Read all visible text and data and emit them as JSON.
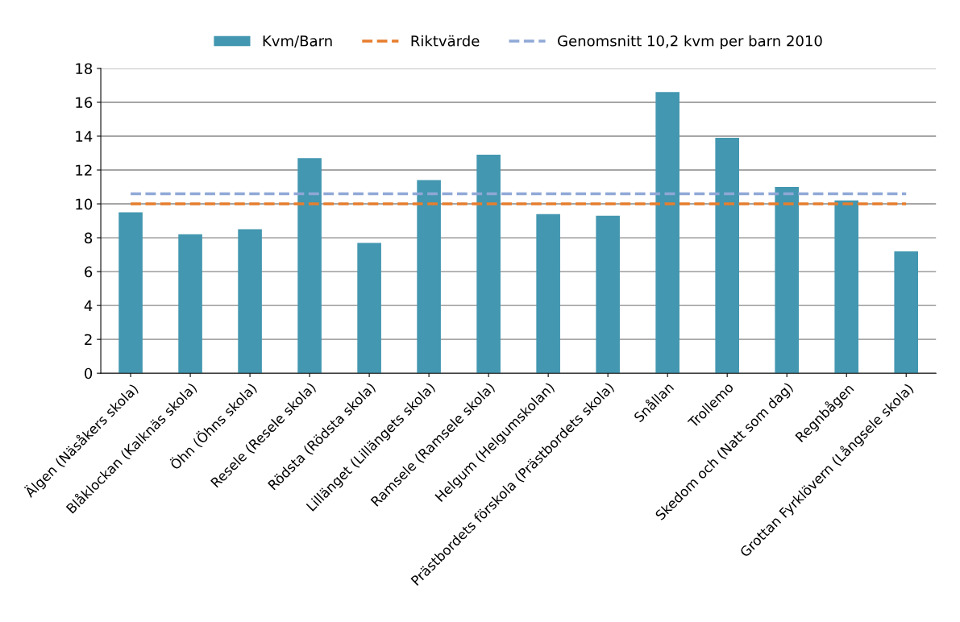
{
  "chart_data": {
    "type": "bar",
    "categories": [
      "Älgen (Näsåkers skola)",
      "Blåklockan (Kalknäs skola)",
      "Öhn (Öhns skola)",
      "Resele (Resele skola)",
      "Rödsta (Rödsta skola)",
      "Lillänget (Lillängets skola)",
      "Ramsele (Ramsele skola)",
      "Helgum (Helgumskolan)",
      "Prästbordets förskola (Prästbordets skola)",
      "Snållan",
      "Trollemo",
      "Skedom och (Natt som dag)",
      "Regnbågen",
      "Grottan Fyrklövern (Långsele skola)"
    ],
    "series": [
      {
        "name": "Kvm/Barn",
        "color": "#4397b0",
        "values": [
          9.5,
          8.2,
          8.5,
          12.7,
          7.7,
          11.4,
          12.9,
          9.4,
          9.3,
          16.6,
          13.9,
          11.0,
          10.2,
          7.2
        ]
      },
      {
        "name": "Riktvärde",
        "type": "line",
        "line_style": "dashed",
        "color": "#e67e2e",
        "values": [
          10,
          10,
          10,
          10,
          10,
          10,
          10,
          10,
          10,
          10,
          10,
          10,
          10,
          10
        ]
      },
      {
        "name": "Genomsnitt 10,2 kvm per barn 2010",
        "type": "line",
        "line_style": "dashed",
        "color": "#8fa8d6",
        "values": [
          10.6,
          10.6,
          10.6,
          10.6,
          10.6,
          10.6,
          10.6,
          10.6,
          10.6,
          10.6,
          10.6,
          10.6,
          10.6,
          10.6
        ]
      }
    ],
    "ylim": [
      0,
      18
    ],
    "yticks": [
      0,
      2,
      4,
      6,
      8,
      10,
      12,
      14,
      16,
      18
    ],
    "grid": "y",
    "legend": "top"
  }
}
